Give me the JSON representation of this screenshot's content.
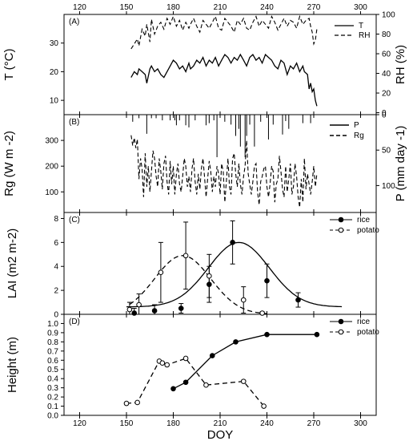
{
  "chart_data": [
    {
      "panel_label": "(A)",
      "type": "line",
      "x_top_ticks": [
        120,
        150,
        180,
        210,
        240,
        270,
        300
      ],
      "xlim": [
        110,
        310
      ],
      "left_axis": {
        "label": "T (°C)",
        "ticks": [
          10,
          20,
          30
        ],
        "ylim": [
          5,
          40
        ]
      },
      "right_axis": {
        "label": "RH (%)",
        "ticks": [
          0,
          20,
          40,
          60,
          80,
          100
        ],
        "ylim": [
          -2,
          100
        ]
      },
      "legend": [
        "T",
        "RH"
      ],
      "series": [
        {
          "name": "T",
          "axis": "left",
          "style": "solid",
          "x": [
            153,
            155,
            157,
            158,
            160,
            162,
            163,
            165,
            166,
            168,
            170,
            172,
            174,
            176,
            178,
            180,
            182,
            184,
            186,
            188,
            190,
            191,
            193,
            195,
            197,
            199,
            201,
            203,
            205,
            207,
            209,
            211,
            213,
            215,
            217,
            219,
            221,
            223,
            225,
            227,
            229,
            231,
            233,
            235,
            237,
            239,
            241,
            243,
            245,
            247,
            249,
            251,
            253,
            255,
            257,
            259,
            261,
            263,
            264,
            266,
            267,
            268,
            269,
            270,
            271,
            272
          ],
          "y": [
            18,
            20,
            19,
            21,
            20,
            19,
            16,
            21,
            22,
            20,
            21,
            19,
            18,
            20,
            22,
            24,
            23,
            21,
            22,
            20,
            23,
            21,
            22,
            24,
            23,
            25,
            22,
            24,
            23,
            25,
            22,
            24,
            26,
            25,
            23,
            25,
            24,
            26,
            24,
            22,
            25,
            26,
            24,
            25,
            23,
            26,
            25,
            24,
            22,
            21,
            24,
            23,
            19,
            22,
            21,
            23,
            20,
            22,
            20,
            19,
            14,
            16,
            13,
            14,
            10,
            8
          ]
        },
        {
          "name": "RH",
          "axis": "right",
          "style": "dashed",
          "x": [
            153,
            155,
            157,
            158,
            160,
            162,
            163,
            165,
            166,
            168,
            170,
            172,
            174,
            176,
            178,
            180,
            182,
            184,
            186,
            188,
            190,
            191,
            193,
            195,
            197,
            199,
            201,
            203,
            205,
            207,
            209,
            211,
            213,
            215,
            217,
            219,
            221,
            223,
            225,
            227,
            229,
            231,
            233,
            235,
            237,
            239,
            241,
            243,
            245,
            247,
            249,
            251,
            253,
            255,
            257,
            259,
            261,
            263,
            265,
            267,
            268,
            269,
            270,
            271,
            272
          ],
          "y": [
            65,
            70,
            75,
            68,
            85,
            78,
            90,
            72,
            95,
            80,
            88,
            92,
            85,
            96,
            90,
            98,
            88,
            94,
            84,
            92,
            86,
            90,
            96,
            88,
            82,
            94,
            90,
            86,
            92,
            98,
            86,
            84,
            96,
            92,
            88,
            82,
            94,
            90,
            96,
            86,
            84,
            92,
            98,
            88,
            94,
            90,
            86,
            98,
            92,
            84,
            90,
            96,
            88,
            94,
            92,
            86,
            98,
            90,
            94,
            96,
            88,
            82,
            70,
            74,
            85
          ]
        }
      ]
    },
    {
      "panel_label": "(B)",
      "type": "line",
      "xlim": [
        110,
        310
      ],
      "left_axis": {
        "label": "Rg (W m -2)",
        "ticks": [
          100,
          200,
          300
        ],
        "ylim": [
          20,
          400
        ]
      },
      "right_axis": {
        "label": "P (mm day -1)",
        "ticks": [
          0,
          50,
          100
        ],
        "ylim": [
          0,
          138
        ],
        "inverted": true
      },
      "legend": [
        "P",
        "Rg"
      ],
      "series": [
        {
          "name": "Rg",
          "axis": "left",
          "style": "dashed",
          "x": [
            153,
            154,
            155,
            156,
            157,
            158,
            159,
            160,
            161,
            162,
            163,
            164,
            165,
            166,
            167,
            168,
            169,
            170,
            171,
            172,
            173,
            174,
            175,
            176,
            177,
            178,
            179,
            180,
            181,
            182,
            183,
            184,
            185,
            186,
            187,
            188,
            189,
            190,
            191,
            192,
            193,
            194,
            195,
            196,
            197,
            198,
            199,
            200,
            201,
            202,
            203,
            204,
            205,
            206,
            207,
            208,
            209,
            210,
            211,
            212,
            213,
            214,
            215,
            216,
            217,
            218,
            219,
            220,
            221,
            222,
            223,
            224,
            225,
            226,
            227,
            228,
            229,
            230,
            231,
            232,
            233,
            234,
            235,
            236,
            237,
            238,
            239,
            240,
            241,
            242,
            243,
            244,
            245,
            246,
            247,
            248,
            249,
            250,
            251,
            252,
            253,
            254,
            255,
            256,
            257,
            258,
            259,
            260,
            261,
            262,
            263,
            264,
            265,
            266,
            267,
            268,
            269,
            270,
            271,
            272
          ],
          "y": [
            320,
            280,
            310,
            270,
            305,
            150,
            230,
            190,
            80,
            250,
            120,
            200,
            100,
            180,
            260,
            230,
            160,
            120,
            230,
            180,
            110,
            210,
            240,
            140,
            90,
            220,
            130,
            200,
            90,
            170,
            210,
            130,
            100,
            160,
            230,
            200,
            120,
            160,
            100,
            190,
            230,
            140,
            90,
            170,
            110,
            190,
            230,
            160,
            80,
            150,
            220,
            180,
            100,
            160,
            120,
            200,
            170,
            90,
            210,
            180,
            60,
            140,
            230,
            120,
            90,
            230,
            250,
            170,
            120,
            210,
            130,
            90,
            160,
            200,
            300,
            170,
            130,
            90,
            140,
            200,
            210,
            100,
            50,
            140,
            160,
            190,
            200,
            120,
            80,
            130,
            200,
            180,
            60,
            130,
            150,
            240,
            180,
            110,
            80,
            200,
            100,
            150,
            210,
            90,
            120,
            210,
            160,
            80,
            40,
            150,
            60,
            230,
            110,
            170,
            130,
            90,
            140,
            200,
            120,
            170
          ]
        },
        {
          "name": "P",
          "axis": "right",
          "style": "bars",
          "x": [
            154,
            158,
            163,
            166,
            169,
            173,
            178,
            181,
            182,
            184,
            188,
            190,
            194,
            201,
            203,
            206,
            208,
            213,
            217,
            220,
            222,
            223,
            226,
            227,
            229,
            232,
            236,
            241,
            244,
            250,
            252,
            254,
            263,
            268
          ],
          "y": [
            10,
            5,
            27,
            5,
            5,
            8,
            8,
            8,
            15,
            8,
            15,
            18,
            8,
            15,
            12,
            8,
            60,
            10,
            14,
            30,
            20,
            45,
            60,
            30,
            14,
            45,
            10,
            35,
            14,
            28,
            9,
            20,
            12,
            12
          ]
        }
      ]
    },
    {
      "panel_label": "(C)",
      "type": "line",
      "xlim": [
        110,
        310
      ],
      "ylabel": "LAI (m2 m-2)",
      "y_ticks": [
        0,
        2,
        4,
        6,
        8
      ],
      "ylim": [
        0,
        8.5
      ],
      "legend": [
        "rice",
        "potato"
      ],
      "series": [
        {
          "name": "rice",
          "style": "solid",
          "marker": "filled-circle",
          "points": {
            "x": [
              155,
              168,
              185,
              203,
              218,
              240,
              260
            ],
            "y": [
              0.1,
              0.3,
              0.5,
              2.5,
              6.0,
              2.8,
              1.2
            ]
          },
          "errors": [
            0.4,
            0.5,
            0.4,
            1.5,
            1.8,
            1.4,
            0.6
          ],
          "fit": {
            "peak": 6.0,
            "center": 222,
            "width": 19.5,
            "baseline": 0.62,
            "x_range": [
              150,
              288
            ]
          }
        },
        {
          "name": "potato",
          "style": "dashed",
          "marker": "open-circle",
          "points": {
            "x": [
              152,
              158,
              172,
              188,
              203,
              225,
              237
            ],
            "y": [
              0.4,
              0.8,
              3.5,
              4.9,
              3.2,
              1.2,
              0.1
            ]
          },
          "errors": [
            0.6,
            0.9,
            2.5,
            2.8,
            1.8,
            1.1,
            0.1
          ],
          "fit": {
            "peak": 4.9,
            "center": 186,
            "width": 18,
            "baseline": 0.0,
            "x_range": [
              152,
              240
            ]
          }
        }
      ]
    },
    {
      "panel_label": "(D)",
      "type": "line",
      "xlim": [
        110,
        310
      ],
      "x_ticks": [
        120,
        150,
        180,
        210,
        240,
        270,
        300
      ],
      "xlabel": "DOY",
      "ylabel": "Height (m)",
      "y_ticks": [
        0.0,
        0.1,
        0.2,
        0.3,
        0.4,
        0.5,
        0.6,
        0.7,
        0.8,
        0.9,
        1.0
      ],
      "ylim": [
        0,
        1.1
      ],
      "legend": [
        "rice",
        "potato"
      ],
      "series": [
        {
          "name": "rice",
          "style": "solid",
          "marker": "filled-circle",
          "x": [
            180,
            188,
            205,
            220,
            240,
            272
          ],
          "y": [
            0.29,
            0.36,
            0.65,
            0.8,
            0.88,
            0.88
          ]
        },
        {
          "name": "potato",
          "style": "dashed",
          "marker": "open-circle",
          "x": [
            150,
            157,
            171,
            173,
            176,
            188,
            201,
            225,
            238
          ],
          "y": [
            0.13,
            0.14,
            0.59,
            0.57,
            0.55,
            0.62,
            0.33,
            0.37,
            0.1
          ]
        }
      ]
    }
  ]
}
